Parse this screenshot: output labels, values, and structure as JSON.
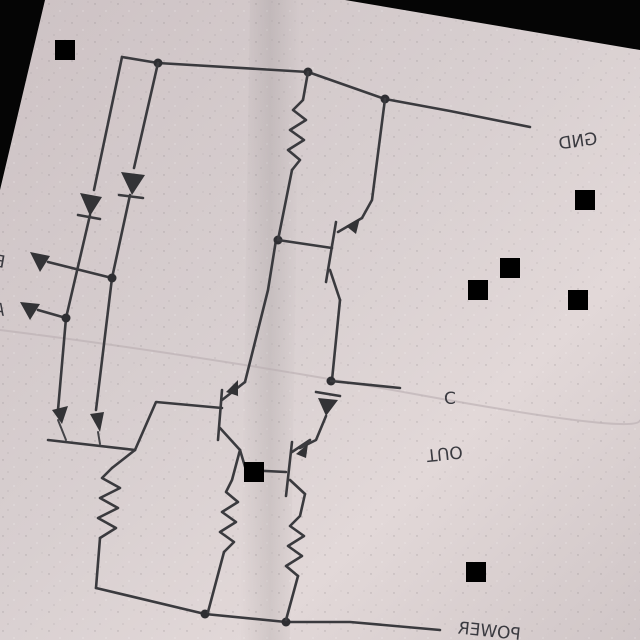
{
  "labels": {
    "gnd": "GND",
    "input_b": "B",
    "input_a": "A",
    "output_c": "C",
    "out": "OUT",
    "power": "POWER"
  }
}
